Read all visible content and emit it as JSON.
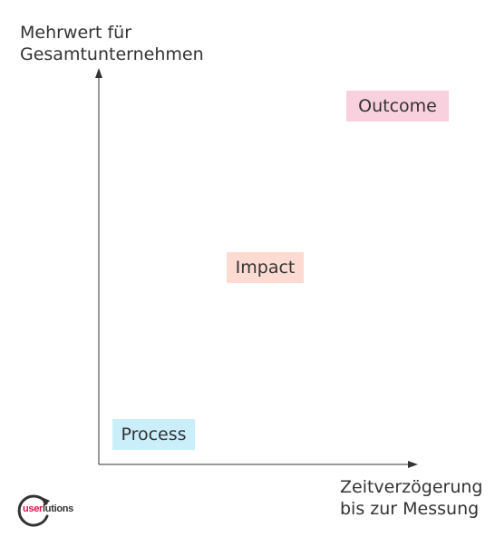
{
  "y_axis_label": [
    "Mehrwert für",
    "Gesamtunternehmen"
  ],
  "x_axis_label": [
    "Zeitverzögerung",
    "bis zur Messung"
  ],
  "boxes": [
    {
      "label": "Outcome",
      "color": "#f9d0de"
    },
    {
      "label": "Impact",
      "color": "#fddbd2"
    },
    {
      "label": "Process",
      "color": "#cbeefb"
    }
  ],
  "logo": {
    "part_a": "user",
    "part_b": "lutions"
  },
  "colors": {
    "axis": "#333333",
    "logo_accent": "#e3114a"
  }
}
